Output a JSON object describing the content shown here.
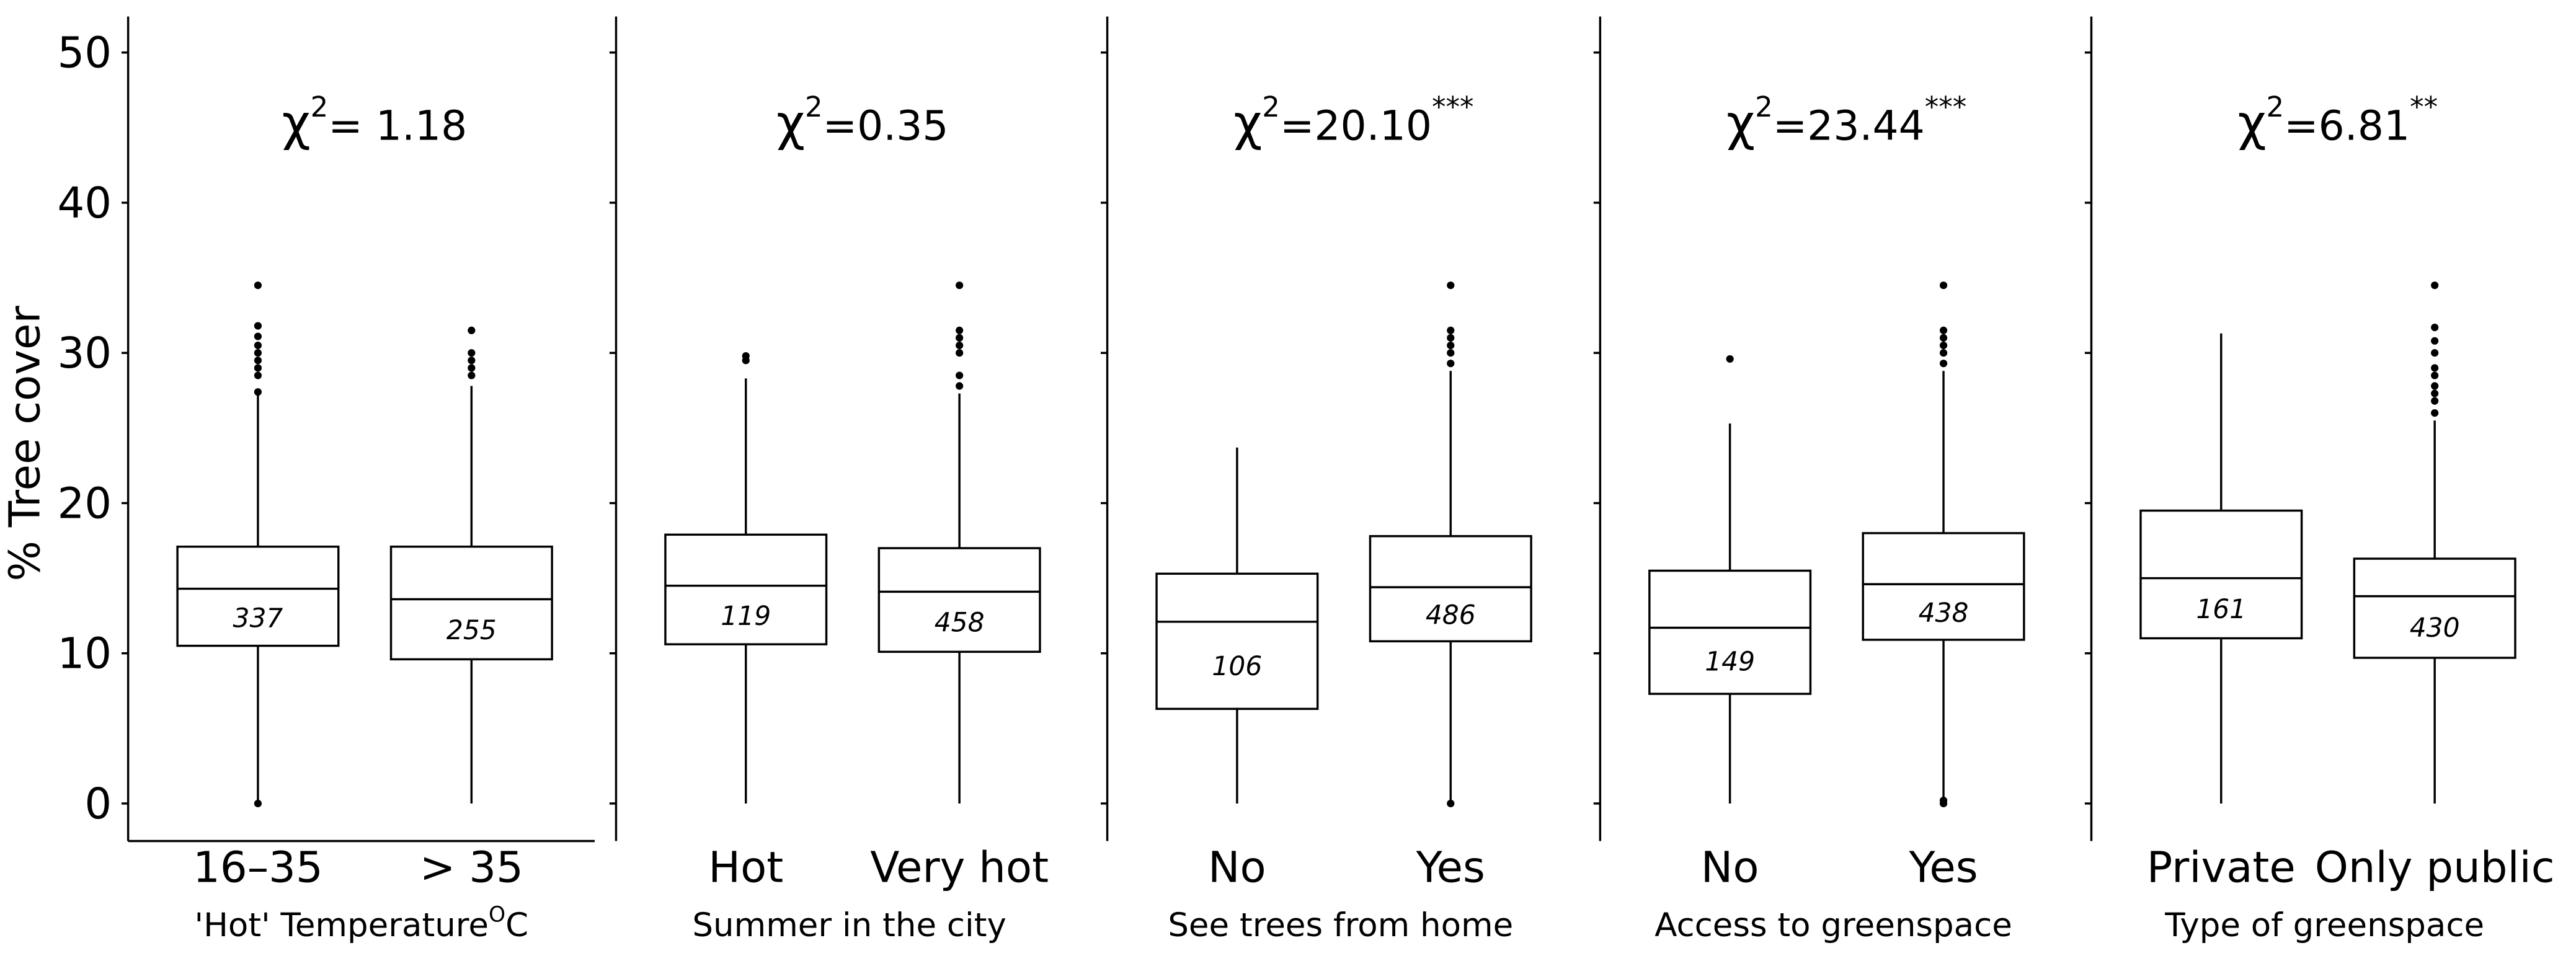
{
  "chart_data": {
    "type": "box",
    "ylabel": "% Tree cover",
    "ylim": [
      -2.5,
      52.4
    ],
    "yticks": [
      0,
      10,
      20,
      30,
      40,
      50
    ],
    "color": "#000000",
    "panels": [
      {
        "stat_symbol": "χ",
        "stat_power": "2",
        "stat_label": "= 1.18",
        "xlabel": "'Hot' Temperature",
        "xlabel_sup": "O",
        "xlabel_suffix": "C",
        "categories": [
          "16–35",
          "> 35"
        ],
        "boxes": [
          {
            "n": 337,
            "q1": 10.5,
            "median": 14.3,
            "q3": 17.1,
            "whisker_low": 0,
            "whisker_high": 27.2,
            "outliers": [
              0,
              27.4,
              28.5,
              29,
              29.5,
              30,
              30.5,
              31.1,
              31.8,
              34.5
            ]
          },
          {
            "n": 255,
            "q1": 9.6,
            "median": 13.6,
            "q3": 17.1,
            "whisker_low": 0,
            "whisker_high": 27.8,
            "outliers": [
              28.5,
              29,
              29.5,
              30,
              31.5
            ]
          }
        ]
      },
      {
        "stat_symbol": "χ",
        "stat_power": "2",
        "stat_label": "=0.35",
        "xlabel": "Summer in the city",
        "categories": [
          "Hot",
          "Very hot"
        ],
        "boxes": [
          {
            "n": 119,
            "q1": 10.6,
            "median": 14.5,
            "q3": 17.9,
            "whisker_low": 0,
            "whisker_high": 28.3,
            "outliers": [
              29.5,
              29.8
            ]
          },
          {
            "n": 458,
            "q1": 10.1,
            "median": 14.1,
            "q3": 17.0,
            "whisker_low": 0,
            "whisker_high": 27.3,
            "outliers": [
              27.8,
              28.5,
              30,
              30.5,
              31,
              31.5,
              34.5
            ]
          }
        ]
      },
      {
        "stat_symbol": "χ",
        "stat_power": "2",
        "stat_label": "=20.10",
        "significance": "***",
        "xlabel": "See trees from home",
        "categories": [
          "No",
          "Yes"
        ],
        "boxes": [
          {
            "n": 106,
            "q1": 6.3,
            "median": 12.1,
            "q3": 15.3,
            "whisker_low": 0,
            "whisker_high": 23.7,
            "outliers": []
          },
          {
            "n": 486,
            "q1": 10.8,
            "median": 14.4,
            "q3": 17.8,
            "whisker_low": 0,
            "whisker_high": 28.8,
            "outliers": [
              0,
              29.3,
              30,
              30.5,
              31,
              31.5,
              34.5
            ]
          }
        ]
      },
      {
        "stat_symbol": "χ",
        "stat_power": "2",
        "stat_label": "=23.44",
        "significance": "***",
        "xlabel": "Access to greenspace",
        "categories": [
          "No",
          "Yes"
        ],
        "boxes": [
          {
            "n": 149,
            "q1": 7.3,
            "median": 11.7,
            "q3": 15.5,
            "whisker_low": 0,
            "whisker_high": 25.3,
            "outliers": [
              29.6
            ]
          },
          {
            "n": 438,
            "q1": 10.9,
            "median": 14.6,
            "q3": 18.0,
            "whisker_low": 0,
            "whisker_high": 28.8,
            "outliers": [
              0,
              0.2,
              29.3,
              30,
              30.5,
              31,
              31.5,
              34.5
            ]
          }
        ]
      },
      {
        "stat_symbol": "χ",
        "stat_power": "2",
        "stat_label": "=6.81",
        "significance": "**",
        "xlabel": "Type of greenspace",
        "categories": [
          "Private",
          "Only public"
        ],
        "boxes": [
          {
            "n": 161,
            "q1": 11.0,
            "median": 15.0,
            "q3": 19.5,
            "whisker_low": 0,
            "whisker_high": 31.3,
            "outliers": []
          },
          {
            "n": 430,
            "q1": 9.7,
            "median": 13.8,
            "q3": 16.3,
            "whisker_low": 0,
            "whisker_high": 25.5,
            "outliers": [
              26,
              26.8,
              27.3,
              27.8,
              28.5,
              29,
              30,
              30.8,
              31.7,
              34.5
            ]
          }
        ]
      }
    ]
  }
}
